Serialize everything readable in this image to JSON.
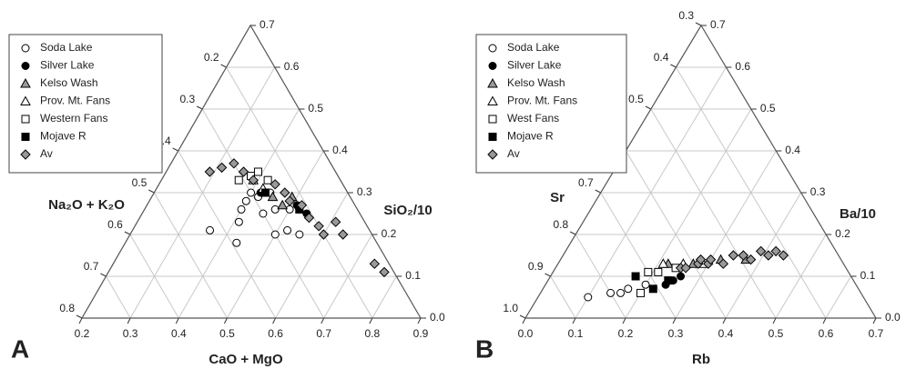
{
  "chart_data": [
    {
      "type": "ternary",
      "panel": "A",
      "grid": true,
      "axes": {
        "bottom": {
          "label": "CaO + MgO",
          "lim": [
            0.2,
            0.9
          ],
          "ticks": [
            0.2,
            0.3,
            0.4,
            0.5,
            0.6,
            0.7,
            0.8,
            0.9
          ]
        },
        "right": {
          "label": "SiO₂/10",
          "lim": [
            0,
            0.7
          ],
          "ticks": [
            {
              "value": 0,
              "label": "0.0"
            },
            0.1,
            0.2,
            0.3,
            0.4,
            0.5,
            0.6,
            0.7
          ]
        },
        "left": {
          "label": "Na₂O + K₂O",
          "lim": [
            0.1,
            0.8
          ],
          "ticks": [
            0.2,
            0.3,
            0.4,
            0.5,
            0.6,
            0.7,
            0.8
          ]
        }
      },
      "series": [
        {
          "name": "Soda Lake",
          "marker": "circle",
          "color": "#ffffff",
          "points": [
            [
              0.36,
              0.21
            ],
            [
              0.43,
              0.18
            ],
            [
              0.41,
              0.23
            ],
            [
              0.4,
              0.26
            ],
            [
              0.4,
              0.28
            ],
            [
              0.4,
              0.3
            ],
            [
              0.45,
              0.25
            ],
            [
              0.47,
              0.26
            ],
            [
              0.5,
              0.2
            ],
            [
              0.52,
              0.21
            ],
            [
              0.5,
              0.26
            ],
            [
              0.55,
              0.2
            ],
            [
              0.44,
              0.3
            ],
            [
              0.42,
              0.29
            ]
          ]
        },
        {
          "name": "Silver Lake",
          "marker": "circle",
          "color": "#000000",
          "points": [
            [
              0.42,
              0.3
            ],
            [
              0.51,
              0.27
            ],
            [
              0.52,
              0.26
            ],
            [
              0.54,
              0.25
            ]
          ]
        },
        {
          "name": "Kelso Wash",
          "marker": "triangle",
          "color": "#999999",
          "points": [
            [
              0.45,
              0.29
            ],
            [
              0.48,
              0.27
            ],
            [
              0.49,
              0.29
            ]
          ]
        },
        {
          "name": "Prov. Mt. Fans",
          "marker": "triangle",
          "color": "#ffffff",
          "points": [
            [
              0.39,
              0.33
            ],
            [
              0.42,
              0.31
            ]
          ]
        },
        {
          "name": "Western Fans",
          "marker": "square",
          "color": "#ffffff",
          "points": [
            [
              0.36,
              0.33
            ],
            [
              0.38,
              0.34
            ],
            [
              0.39,
              0.35
            ],
            [
              0.42,
              0.33
            ]
          ]
        },
        {
          "name": "Mojave R",
          "marker": "square",
          "color": "#000000",
          "points": [
            [
              0.43,
              0.3
            ],
            [
              0.52,
              0.26
            ]
          ]
        },
        {
          "name": "Av",
          "marker": "diamond",
          "color": "#999999",
          "points": [
            [
              0.29,
              0.35
            ],
            [
              0.31,
              0.36
            ],
            [
              0.33,
              0.37
            ],
            [
              0.36,
              0.35
            ],
            [
              0.39,
              0.33
            ],
            [
              0.44,
              0.32
            ],
            [
              0.47,
              0.3
            ],
            [
              0.49,
              0.28
            ],
            [
              0.52,
              0.27
            ],
            [
              0.55,
              0.24
            ],
            [
              0.58,
              0.22
            ],
            [
              0.6,
              0.2
            ],
            [
              0.61,
              0.23
            ],
            [
              0.64,
              0.2
            ],
            [
              0.74,
              0.13
            ],
            [
              0.77,
              0.11
            ]
          ]
        }
      ]
    },
    {
      "type": "ternary",
      "panel": "B",
      "grid": true,
      "axes": {
        "bottom": {
          "label": "Rb",
          "lim": [
            0,
            0.7
          ],
          "ticks": [
            {
              "value": 0,
              "label": "0.0"
            },
            0.1,
            0.2,
            0.3,
            0.4,
            0.5,
            0.6,
            0.7
          ]
        },
        "right": {
          "label": "Ba/10",
          "lim": [
            0,
            0.7
          ],
          "ticks": [
            {
              "value": 0,
              "label": "0.0"
            },
            0.1,
            0.2,
            0.3,
            0.4,
            0.5,
            0.6,
            0.7
          ]
        },
        "left": {
          "label": "Sr",
          "lim": [
            0.3,
            1
          ],
          "ticks": [
            0.3,
            0.4,
            0.5,
            0.6,
            0.7,
            0.8,
            0.9,
            {
              "value": 1,
              "label": "1.0"
            }
          ]
        }
      },
      "series": [
        {
          "name": "Soda Lake",
          "marker": "circle",
          "color": "#ffffff",
          "points": [
            [
              0.1,
              0.05
            ],
            [
              0.14,
              0.06
            ],
            [
              0.16,
              0.06
            ],
            [
              0.17,
              0.07
            ],
            [
              0.19,
              0.11
            ],
            [
              0.2,
              0.08
            ]
          ]
        },
        {
          "name": "Silver Lake",
          "marker": "circle",
          "color": "#000000",
          "points": [
            [
              0.24,
              0.08
            ],
            [
              0.25,
              0.09
            ],
            [
              0.26,
              0.1
            ]
          ]
        },
        {
          "name": "Kelso Wash",
          "marker": "triangle",
          "color": "#999999",
          "points": [
            [
              0.22,
              0.13
            ],
            [
              0.27,
              0.13
            ],
            [
              0.32,
              0.14
            ],
            [
              0.37,
              0.14
            ]
          ]
        },
        {
          "name": "Prov. Mt. Fans",
          "marker": "triangle",
          "color": "#ffffff",
          "points": [
            [
              0.21,
              0.13
            ],
            [
              0.25,
              0.13
            ],
            [
              0.29,
              0.13
            ]
          ]
        },
        {
          "name": "West Fans",
          "marker": "square",
          "color": "#ffffff",
          "points": [
            [
              0.2,
              0.06
            ],
            [
              0.19,
              0.11
            ],
            [
              0.21,
              0.11
            ],
            [
              0.24,
              0.12
            ]
          ]
        },
        {
          "name": "Mojave R",
          "marker": "square",
          "color": "#000000",
          "points": [
            [
              0.17,
              0.1
            ],
            [
              0.24,
              0.09
            ],
            [
              0.22,
              0.07
            ]
          ]
        },
        {
          "name": "Av",
          "marker": "diamond",
          "color": "#999999",
          "points": [
            [
              0.25,
              0.12
            ],
            [
              0.26,
              0.12
            ],
            [
              0.28,
              0.13
            ],
            [
              0.3,
              0.13
            ],
            [
              0.3,
              0.14
            ],
            [
              0.33,
              0.13
            ],
            [
              0.34,
              0.15
            ],
            [
              0.36,
              0.15
            ],
            [
              0.38,
              0.14
            ],
            [
              0.39,
              0.16
            ],
            [
              0.41,
              0.15
            ],
            [
              0.42,
              0.16
            ],
            [
              0.44,
              0.15
            ],
            [
              0.28,
              0.14
            ]
          ]
        }
      ]
    }
  ]
}
